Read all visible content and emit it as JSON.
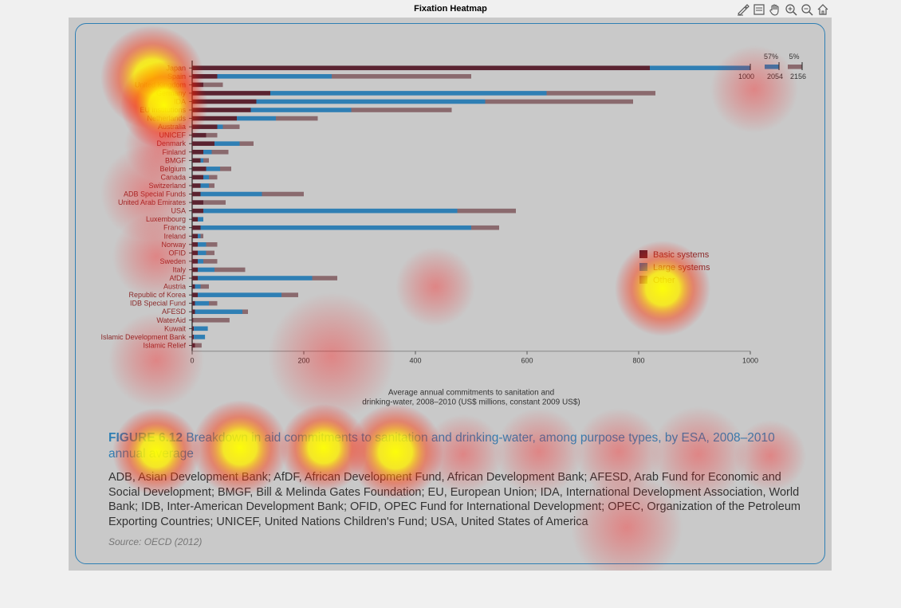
{
  "window": {
    "title": "Fixation Heatmap"
  },
  "toolbar": {
    "icons": [
      "edit-brush-icon",
      "data-tips-icon",
      "pan-hand-icon",
      "zoom-in-icon",
      "zoom-out-icon",
      "home-icon"
    ]
  },
  "chart_data": {
    "type": "bar",
    "orientation": "horizontal",
    "stacked": true,
    "categories": [
      "Japan",
      "Spain",
      "United Kingdom",
      "Germany",
      "IDA",
      "EU institutions",
      "Netherlands",
      "Australia",
      "UNICEF",
      "Denmark",
      "Finland",
      "BMGF",
      "Belgium",
      "Canada",
      "Switzerland",
      "ADB Special Funds",
      "United Arab Emirates",
      "USA",
      "Luxembourg",
      "France",
      "Ireland",
      "Norway",
      "OFID",
      "Sweden",
      "Italy",
      "AfDF",
      "Austria",
      "Republic of Korea",
      "IDB Special Fund",
      "AFESD",
      "WaterAid",
      "Kuwait",
      "Islamic Development Bank",
      "Islamic Relief"
    ],
    "category_labels_shown": [
      "Japan",
      "Spain",
      "United Kingdom",
      "Germany",
      "IDA",
      "EU institutions",
      "Netherlands",
      "Australia",
      "UNICEF",
      "Denmark",
      "Finland",
      "BMGF",
      "Belgium",
      "Canada",
      "Switzerland",
      "ADB Special Funds",
      "United Arab Emirates",
      "USA",
      "Luxembourg",
      "France",
      "Ireland",
      "Norway",
      "OFID",
      "Sweden",
      "Italy",
      "AfDF",
      "Austria",
      "Republic of Korea",
      "IDB Special Fund",
      "AFESD",
      "WaterAid",
      "Kuwait",
      "Islamic Development Bank",
      "Islamic Relief"
    ],
    "series": [
      {
        "name": "Basic systems",
        "color": "#5a2330",
        "values": [
          820,
          45,
          20,
          140,
          115,
          105,
          80,
          45,
          25,
          40,
          20,
          15,
          25,
          20,
          15,
          15,
          20,
          20,
          10,
          15,
          10,
          10,
          10,
          10,
          10,
          10,
          5,
          10,
          5,
          5,
          2,
          3,
          3,
          5
        ]
      },
      {
        "name": "Large systems",
        "color": "#2f7fb4",
        "values": [
          180,
          205,
          0,
          495,
          410,
          180,
          70,
          10,
          0,
          45,
          15,
          5,
          25,
          10,
          15,
          110,
          0,
          455,
          10,
          485,
          5,
          15,
          15,
          10,
          30,
          205,
          10,
          150,
          25,
          85,
          0,
          25,
          20,
          0
        ]
      },
      {
        "name": "Other",
        "color": "#8a6a6e",
        "values": [
          0,
          250,
          35,
          195,
          265,
          180,
          75,
          30,
          20,
          25,
          30,
          10,
          20,
          15,
          10,
          75,
          40,
          105,
          0,
          50,
          5,
          20,
          15,
          25,
          55,
          45,
          15,
          30,
          15,
          10,
          65,
          0,
          0,
          12
        ]
      }
    ],
    "xlim": [
      0,
      1000
    ],
    "xticks": [
      0,
      200,
      400,
      600,
      800,
      1000
    ],
    "xlabel_line1": "Average annual commitments to sanitation and",
    "xlabel_line2": "drinking-water, 2008–2010 (US$ millions, constant 2009 US$)",
    "overflow_annotations": [
      {
        "label": "57%",
        "value_label": "2054"
      },
      {
        "label": "5%",
        "value_label": "2156"
      }
    ],
    "overflow_start_label": "1000",
    "legend": {
      "placement": "right",
      "entries": [
        "Basic systems",
        "Large systems",
        "Other"
      ]
    }
  },
  "caption": {
    "figure_number": "FIGURE 6.12",
    "text": " Breakdown in aid commitments to sanitation and drinking-water, among purpose types, by ESA, 2008–2010 annual average"
  },
  "abbreviations": "ADB, Asian Development Bank; AfDF, African Development Fund, African Development Bank; AFESD, Arab Fund for Economic and Social Development; BMGF, Bill & Melinda Gates Foundation; EU, European Union; IDA, International Development Association, World Bank; IDB, Inter-American Development Bank; OFID, OPEC Fund for International Development; OPEC, Organization of the Petroleum Exporting Countries; UNICEF, United Nations Children's Fund; USA, United States of America",
  "source": "Source: OECD (2012)",
  "heatmap": {
    "colors": [
      "#ff0000",
      "#ffff00"
    ]
  }
}
